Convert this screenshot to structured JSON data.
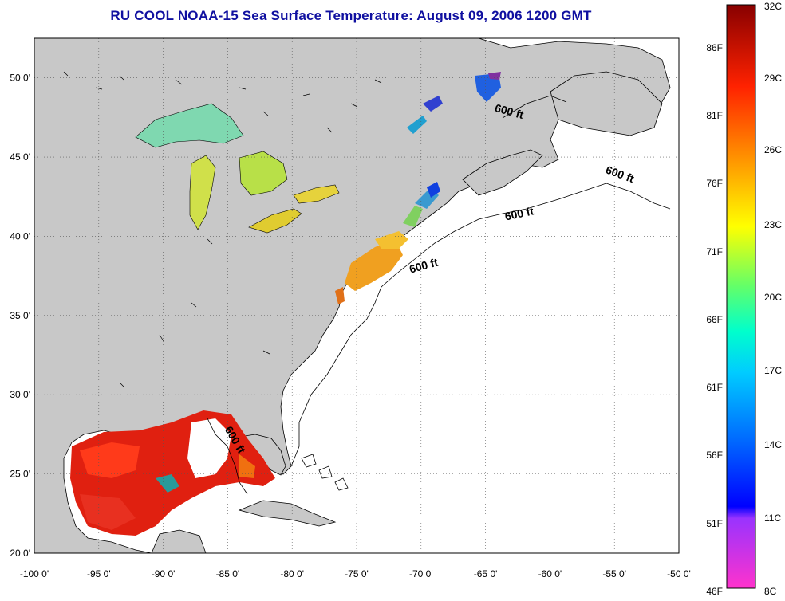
{
  "title": "RU COOL  NOAA-15  Sea Surface Temperature:  August 09, 2006 1200 GMT",
  "map": {
    "lon_ticks": [
      "-100 0'",
      "-95 0'",
      "-90 0'",
      "-85 0'",
      "-80 0'",
      "-75 0'",
      "-70 0'",
      "-65 0'",
      "-60 0'",
      "-55 0'",
      "-50 0'"
    ],
    "lat_ticks": [
      "50 0'",
      "45 0'",
      "40 0'",
      "35 0'",
      "30 0'",
      "25 0'",
      "20 0'"
    ],
    "lon_range": [
      -100,
      -50
    ],
    "lat_range": [
      20,
      52.5
    ],
    "contour_labels": [
      "600 ft",
      "600 ft",
      "600 ft",
      "600 ft",
      "600 ft"
    ],
    "colors": {
      "land": "#c8c8c8",
      "ocean": "#ffffff",
      "title": "#1010a0"
    }
  },
  "colorbar": {
    "fahrenheit_labels": [
      "86F",
      "81F",
      "76F",
      "71F",
      "66F",
      "61F",
      "56F",
      "51F",
      "46F"
    ],
    "celsius_labels": [
      "32C",
      "29C",
      "26C",
      "23C",
      "20C",
      "17C",
      "14C",
      "11C",
      "8C"
    ],
    "range_c": [
      8,
      32
    ]
  }
}
